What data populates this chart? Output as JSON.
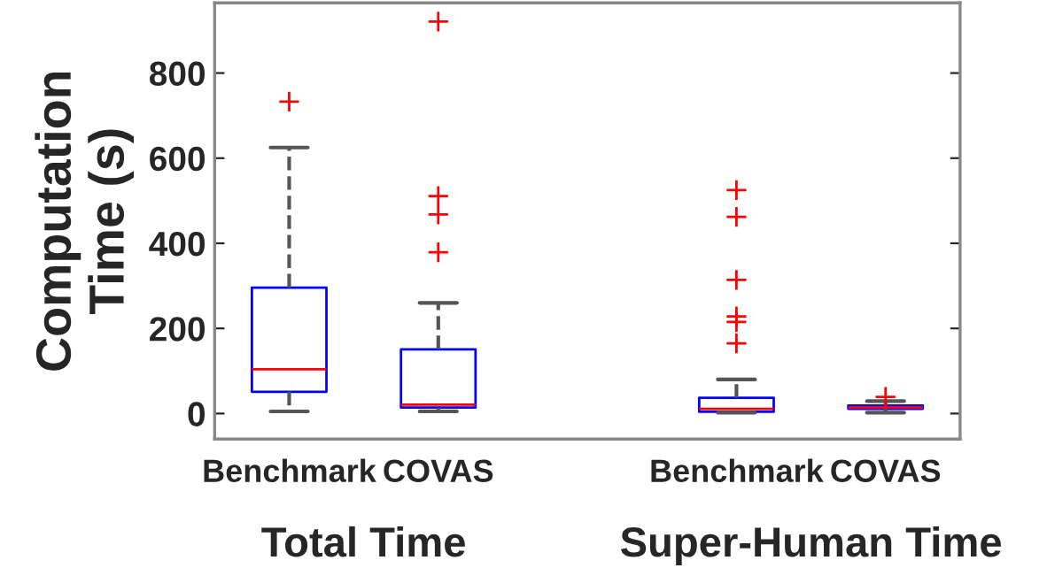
{
  "chart_data": {
    "type": "box",
    "ylabel": "Computation\nTime (s)",
    "categories": [
      "Benchmark",
      "COVAS",
      null,
      "Benchmark",
      "COVAS"
    ],
    "series": [
      {
        "color": "#0000ff",
        "boxes": [
          {
            "low": 5,
            "q1": 51,
            "median": 104,
            "q3": 296,
            "high": 625,
            "outliers": [
              733
            ]
          },
          {
            "low": 5,
            "q1": 14,
            "median": 21,
            "q3": 151,
            "high": 260,
            "outliers": [
              921,
              511,
              468,
              379
            ]
          },
          null,
          {
            "low": 2,
            "q1": 4,
            "median": 11,
            "q3": 37,
            "high": 80,
            "outliers": [
              525,
              462,
              314,
              228,
              215,
              165
            ]
          },
          {
            "low": 2,
            "q1": 11,
            "median": 14,
            "q3": 19,
            "high": 29,
            "outliers": [
              39
            ]
          }
        ]
      }
    ],
    "ylim": [
      -60,
      965
    ],
    "yticks": [
      0,
      200,
      400,
      600,
      800
    ],
    "marker": "cross",
    "grid": false,
    "legend": false,
    "annotations": [
      "Total Time",
      "Super-Human Time"
    ]
  }
}
